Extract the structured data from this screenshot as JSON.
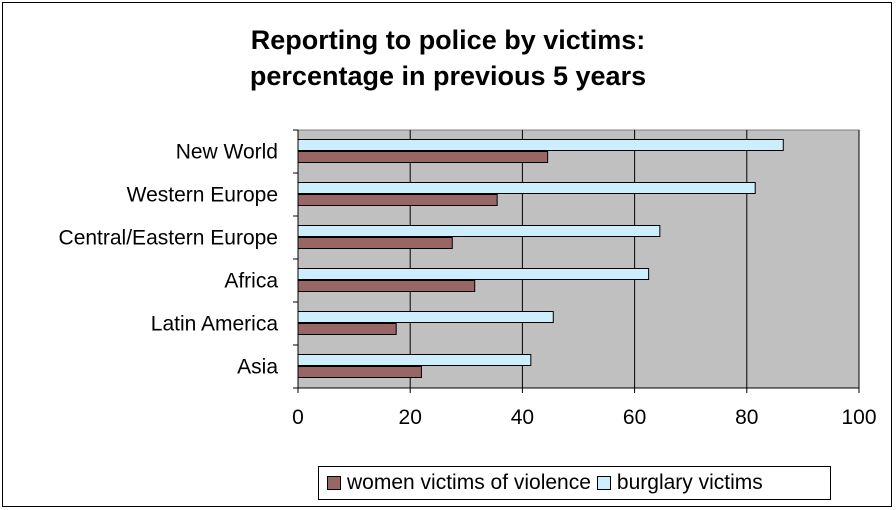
{
  "chart_data": {
    "type": "bar",
    "orientation": "horizontal",
    "title_lines": [
      "Reporting to police by victims:",
      "percentage in previous 5 years"
    ],
    "categories": [
      "New World",
      "Western Europe",
      "Central/Eastern Europe",
      "Africa",
      "Latin America",
      "Asia"
    ],
    "series": [
      {
        "name": "burglary victims",
        "color": "#cceeff",
        "values": [
          86.5,
          81.5,
          64.5,
          62.5,
          45.5,
          41.5
        ]
      },
      {
        "name": "women victims of violence",
        "color": "#996666",
        "values": [
          44.5,
          35.5,
          27.5,
          31.5,
          17.5,
          22.0
        ]
      }
    ],
    "xlim": [
      0,
      100
    ],
    "xticks": [
      0,
      20,
      40,
      60,
      80,
      100
    ],
    "grid": true,
    "legend_position": "bottom",
    "plot_background": "#c0c0c0"
  },
  "legend": [
    {
      "label": "women victims of violence",
      "color": "#996666"
    },
    {
      "label": "burglary victims",
      "color": "#cceeff"
    }
  ]
}
